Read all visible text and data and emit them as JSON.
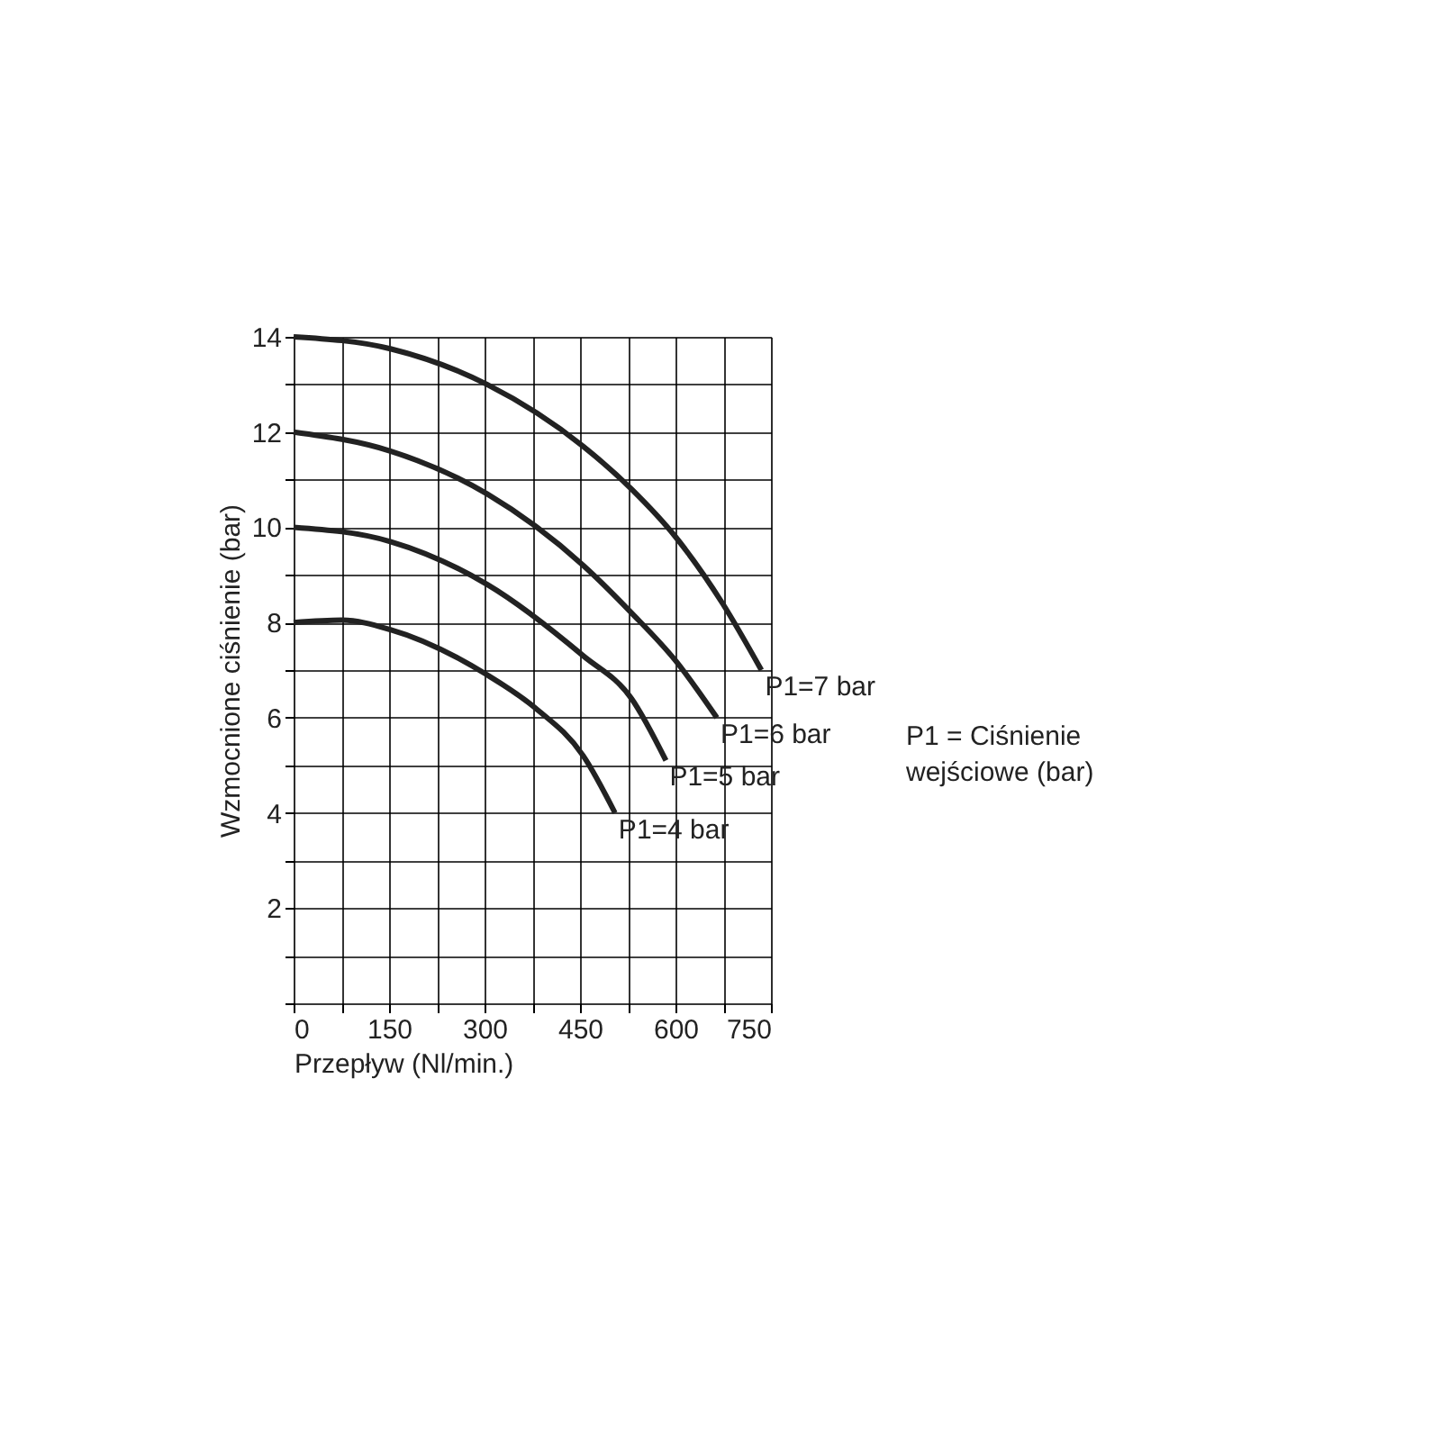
{
  "chart_data": {
    "type": "line",
    "xlabel": "Przepływ (Nl/min.)",
    "ylabel": "Wzmocnione ciśnienie (bar)",
    "xlim": [
      0,
      750
    ],
    "ylim": [
      0,
      14
    ],
    "xticks": [
      0,
      {
        "value": 75,
        "label": null
      },
      150,
      {
        "value": 225,
        "label": null
      },
      300,
      {
        "value": 375,
        "label": null
      },
      450,
      {
        "value": 525,
        "label": null
      },
      600,
      {
        "value": 675,
        "label": null
      },
      750
    ],
    "yticks": [
      {
        "value": 0,
        "label": null
      },
      {
        "value": 1,
        "label": null
      },
      2,
      {
        "value": 3,
        "label": null
      },
      4,
      {
        "value": 5,
        "label": null
      },
      6,
      {
        "value": 7,
        "label": null
      },
      8,
      {
        "value": 9,
        "label": null
      },
      10,
      {
        "value": 11,
        "label": null
      },
      12,
      {
        "value": 13,
        "label": null
      },
      14
    ],
    "grid": true,
    "marker": "none",
    "line_style": "solid",
    "series": [
      {
        "name": "P1=7 bar",
        "color": "#222222",
        "x": [
          0,
          152,
          304,
          455,
          531,
          600,
          674,
          735
        ],
        "values": [
          14,
          13.75,
          13.0,
          11.7,
          10.8,
          9.8,
          8.4,
          7.0
        ]
      },
      {
        "name": "P1=6 bar",
        "color": "#222222",
        "x": [
          0,
          152,
          304,
          455,
          531,
          600,
          665
        ],
        "values": [
          12,
          11.6,
          10.7,
          9.2,
          8.2,
          7.2,
          6.0
        ]
      },
      {
        "name": "P1=5 bar",
        "color": "#222222",
        "x": [
          0,
          152,
          304,
          455,
          531,
          585
        ],
        "values": [
          10,
          9.7,
          8.8,
          7.3,
          6.4,
          5.1
        ]
      },
      {
        "name": "P1=4 bar",
        "color": "#222222",
        "x": [
          0,
          76,
          152,
          304,
          380,
          455,
          505
        ],
        "values": [
          8,
          8.05,
          7.85,
          6.9,
          6.2,
          5.2,
          4.0
        ]
      }
    ],
    "annotations": [
      "P1 = Ciśnienie\n       wejściowe (bar)"
    ]
  }
}
